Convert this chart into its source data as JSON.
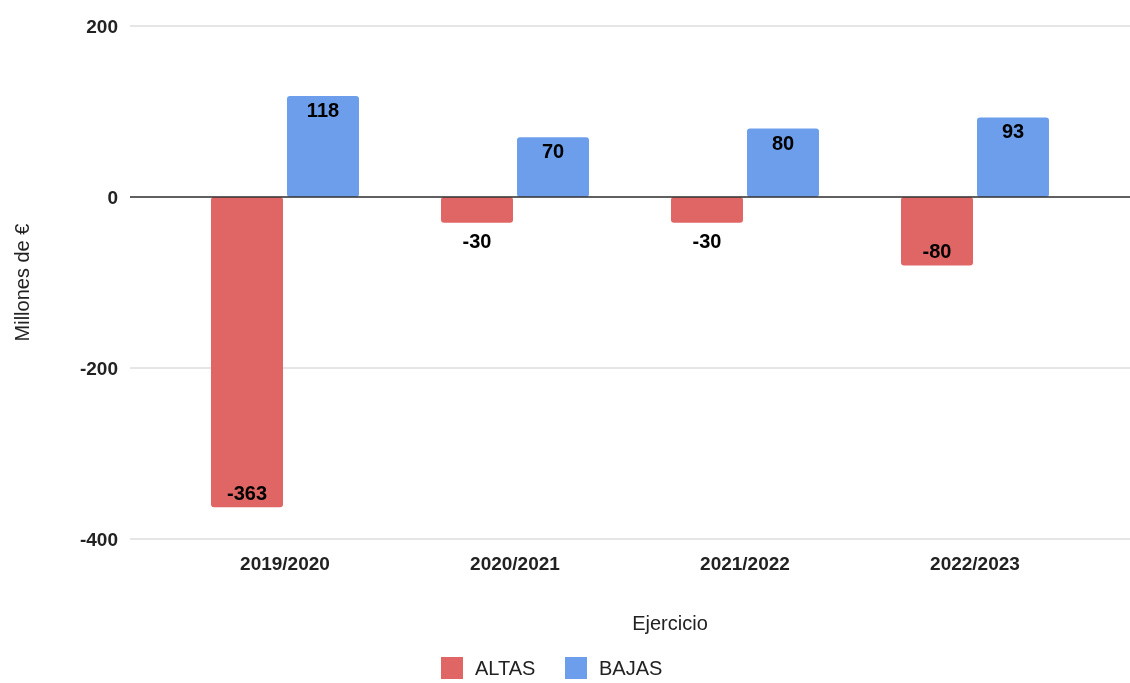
{
  "chart_data": {
    "type": "bar",
    "xlabel": "Ejercicio",
    "ylabel": "Millones de €",
    "categories": [
      "2019/2020",
      "2020/2021",
      "2021/2022",
      "2022/2023"
    ],
    "series": [
      {
        "name": "ALTAS",
        "color": "#e06666",
        "values": [
          -363,
          -30,
          -30,
          -80
        ]
      },
      {
        "name": "BAJAS",
        "color": "#6d9eeb",
        "values": [
          118,
          70,
          80,
          93
        ]
      }
    ],
    "ylim": [
      -400,
      200
    ],
    "yticks": [
      -400,
      -200,
      0,
      200
    ],
    "grid": "y",
    "legend": "bottom",
    "data_labels": true
  }
}
